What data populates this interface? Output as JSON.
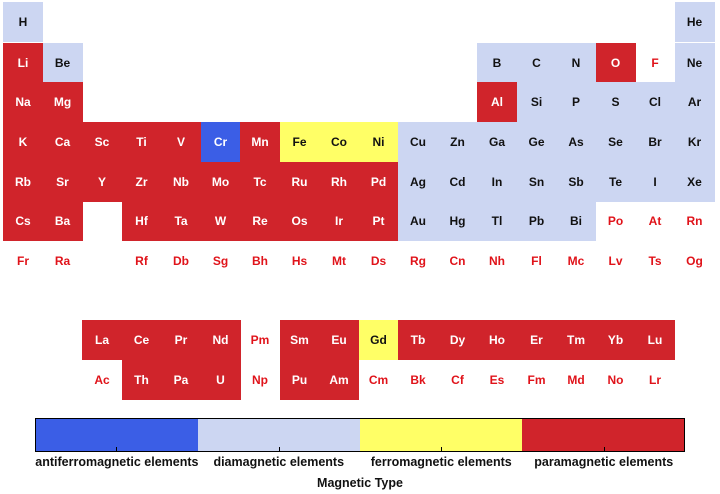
{
  "chart_data": {
    "type": "heatmap",
    "legend": {
      "title": "Magnetic Type",
      "placement": "bottom",
      "categories": [
        {
          "key": "anti",
          "label": "antiferromagnetic elements",
          "color": "#3b5ee6"
        },
        {
          "key": "dia",
          "label": "diamagnetic elements",
          "color": "#ccd6f2"
        },
        {
          "key": "ferro",
          "label": "ferromagnetic elements",
          "color": "#ffff66"
        },
        {
          "key": "para",
          "label": "paramagnetic elements",
          "color": "#d0242b"
        }
      ]
    },
    "unclassified_text_color": "#e0131a",
    "elements": [
      {
        "symbol": "H",
        "period": 1,
        "group": 1,
        "type": "dia"
      },
      {
        "symbol": "He",
        "period": 1,
        "group": 18,
        "type": "dia"
      },
      {
        "symbol": "Li",
        "period": 2,
        "group": 1,
        "type": "para"
      },
      {
        "symbol": "Be",
        "period": 2,
        "group": 2,
        "type": "dia"
      },
      {
        "symbol": "B",
        "period": 2,
        "group": 13,
        "type": "dia"
      },
      {
        "symbol": "C",
        "period": 2,
        "group": 14,
        "type": "dia"
      },
      {
        "symbol": "N",
        "period": 2,
        "group": 15,
        "type": "dia"
      },
      {
        "symbol": "O",
        "period": 2,
        "group": 16,
        "type": "para"
      },
      {
        "symbol": "F",
        "period": 2,
        "group": 17,
        "type": null
      },
      {
        "symbol": "Ne",
        "period": 2,
        "group": 18,
        "type": "dia"
      },
      {
        "symbol": "Na",
        "period": 3,
        "group": 1,
        "type": "para"
      },
      {
        "symbol": "Mg",
        "period": 3,
        "group": 2,
        "type": "para"
      },
      {
        "symbol": "Al",
        "period": 3,
        "group": 13,
        "type": "para"
      },
      {
        "symbol": "Si",
        "period": 3,
        "group": 14,
        "type": "dia"
      },
      {
        "symbol": "P",
        "period": 3,
        "group": 15,
        "type": "dia"
      },
      {
        "symbol": "S",
        "period": 3,
        "group": 16,
        "type": "dia"
      },
      {
        "symbol": "Cl",
        "period": 3,
        "group": 17,
        "type": "dia"
      },
      {
        "symbol": "Ar",
        "period": 3,
        "group": 18,
        "type": "dia"
      },
      {
        "symbol": "K",
        "period": 4,
        "group": 1,
        "type": "para"
      },
      {
        "symbol": "Ca",
        "period": 4,
        "group": 2,
        "type": "para"
      },
      {
        "symbol": "Sc",
        "period": 4,
        "group": 3,
        "type": "para"
      },
      {
        "symbol": "Ti",
        "period": 4,
        "group": 4,
        "type": "para"
      },
      {
        "symbol": "V",
        "period": 4,
        "group": 5,
        "type": "para"
      },
      {
        "symbol": "Cr",
        "period": 4,
        "group": 6,
        "type": "anti"
      },
      {
        "symbol": "Mn",
        "period": 4,
        "group": 7,
        "type": "para"
      },
      {
        "symbol": "Fe",
        "period": 4,
        "group": 8,
        "type": "ferro"
      },
      {
        "symbol": "Co",
        "period": 4,
        "group": 9,
        "type": "ferro"
      },
      {
        "symbol": "Ni",
        "period": 4,
        "group": 10,
        "type": "ferro"
      },
      {
        "symbol": "Cu",
        "period": 4,
        "group": 11,
        "type": "dia"
      },
      {
        "symbol": "Zn",
        "period": 4,
        "group": 12,
        "type": "dia"
      },
      {
        "symbol": "Ga",
        "period": 4,
        "group": 13,
        "type": "dia"
      },
      {
        "symbol": "Ge",
        "period": 4,
        "group": 14,
        "type": "dia"
      },
      {
        "symbol": "As",
        "period": 4,
        "group": 15,
        "type": "dia"
      },
      {
        "symbol": "Se",
        "period": 4,
        "group": 16,
        "type": "dia"
      },
      {
        "symbol": "Br",
        "period": 4,
        "group": 17,
        "type": "dia"
      },
      {
        "symbol": "Kr",
        "period": 4,
        "group": 18,
        "type": "dia"
      },
      {
        "symbol": "Rb",
        "period": 5,
        "group": 1,
        "type": "para"
      },
      {
        "symbol": "Sr",
        "period": 5,
        "group": 2,
        "type": "para"
      },
      {
        "symbol": "Y",
        "period": 5,
        "group": 3,
        "type": "para"
      },
      {
        "symbol": "Zr",
        "period": 5,
        "group": 4,
        "type": "para"
      },
      {
        "symbol": "Nb",
        "period": 5,
        "group": 5,
        "type": "para"
      },
      {
        "symbol": "Mo",
        "period": 5,
        "group": 6,
        "type": "para"
      },
      {
        "symbol": "Tc",
        "period": 5,
        "group": 7,
        "type": "para"
      },
      {
        "symbol": "Ru",
        "period": 5,
        "group": 8,
        "type": "para"
      },
      {
        "symbol": "Rh",
        "period": 5,
        "group": 9,
        "type": "para"
      },
      {
        "symbol": "Pd",
        "period": 5,
        "group": 10,
        "type": "para"
      },
      {
        "symbol": "Ag",
        "period": 5,
        "group": 11,
        "type": "dia"
      },
      {
        "symbol": "Cd",
        "period": 5,
        "group": 12,
        "type": "dia"
      },
      {
        "symbol": "In",
        "period": 5,
        "group": 13,
        "type": "dia"
      },
      {
        "symbol": "Sn",
        "period": 5,
        "group": 14,
        "type": "dia"
      },
      {
        "symbol": "Sb",
        "period": 5,
        "group": 15,
        "type": "dia"
      },
      {
        "symbol": "Te",
        "period": 5,
        "group": 16,
        "type": "dia"
      },
      {
        "symbol": "I",
        "period": 5,
        "group": 17,
        "type": "dia"
      },
      {
        "symbol": "Xe",
        "period": 5,
        "group": 18,
        "type": "dia"
      },
      {
        "symbol": "Cs",
        "period": 6,
        "group": 1,
        "type": "para"
      },
      {
        "symbol": "Ba",
        "period": 6,
        "group": 2,
        "type": "para"
      },
      {
        "symbol": "Hf",
        "period": 6,
        "group": 4,
        "type": "para"
      },
      {
        "symbol": "Ta",
        "period": 6,
        "group": 5,
        "type": "para"
      },
      {
        "symbol": "W",
        "period": 6,
        "group": 6,
        "type": "para"
      },
      {
        "symbol": "Re",
        "period": 6,
        "group": 7,
        "type": "para"
      },
      {
        "symbol": "Os",
        "period": 6,
        "group": 8,
        "type": "para"
      },
      {
        "symbol": "Ir",
        "period": 6,
        "group": 9,
        "type": "para"
      },
      {
        "symbol": "Pt",
        "period": 6,
        "group": 10,
        "type": "para"
      },
      {
        "symbol": "Au",
        "period": 6,
        "group": 11,
        "type": "dia"
      },
      {
        "symbol": "Hg",
        "period": 6,
        "group": 12,
        "type": "dia"
      },
      {
        "symbol": "Tl",
        "period": 6,
        "group": 13,
        "type": "dia"
      },
      {
        "symbol": "Pb",
        "period": 6,
        "group": 14,
        "type": "dia"
      },
      {
        "symbol": "Bi",
        "period": 6,
        "group": 15,
        "type": "dia"
      },
      {
        "symbol": "Po",
        "period": 6,
        "group": 16,
        "type": null
      },
      {
        "symbol": "At",
        "period": 6,
        "group": 17,
        "type": null
      },
      {
        "symbol": "Rn",
        "period": 6,
        "group": 18,
        "type": null
      },
      {
        "symbol": "Fr",
        "period": 7,
        "group": 1,
        "type": null
      },
      {
        "symbol": "Ra",
        "period": 7,
        "group": 2,
        "type": null
      },
      {
        "symbol": "Rf",
        "period": 7,
        "group": 4,
        "type": null
      },
      {
        "symbol": "Db",
        "period": 7,
        "group": 5,
        "type": null
      },
      {
        "symbol": "Sg",
        "period": 7,
        "group": 6,
        "type": null
      },
      {
        "symbol": "Bh",
        "period": 7,
        "group": 7,
        "type": null
      },
      {
        "symbol": "Hs",
        "period": 7,
        "group": 8,
        "type": null
      },
      {
        "symbol": "Mt",
        "period": 7,
        "group": 9,
        "type": null
      },
      {
        "symbol": "Ds",
        "period": 7,
        "group": 10,
        "type": null
      },
      {
        "symbol": "Rg",
        "period": 7,
        "group": 11,
        "type": null
      },
      {
        "symbol": "Cn",
        "period": 7,
        "group": 12,
        "type": null
      },
      {
        "symbol": "Nh",
        "period": 7,
        "group": 13,
        "type": null
      },
      {
        "symbol": "Fl",
        "period": 7,
        "group": 14,
        "type": null
      },
      {
        "symbol": "Mc",
        "period": 7,
        "group": 15,
        "type": null
      },
      {
        "symbol": "Lv",
        "period": 7,
        "group": 16,
        "type": null
      },
      {
        "symbol": "Ts",
        "period": 7,
        "group": 17,
        "type": null
      },
      {
        "symbol": "Og",
        "period": 7,
        "group": 18,
        "type": null
      },
      {
        "symbol": "La",
        "period": "lanthanide",
        "group": 3,
        "type": "para"
      },
      {
        "symbol": "Ce",
        "period": "lanthanide",
        "group": 4,
        "type": "para"
      },
      {
        "symbol": "Pr",
        "period": "lanthanide",
        "group": 5,
        "type": "para"
      },
      {
        "symbol": "Nd",
        "period": "lanthanide",
        "group": 6,
        "type": "para"
      },
      {
        "symbol": "Pm",
        "period": "lanthanide",
        "group": 7,
        "type": null
      },
      {
        "symbol": "Sm",
        "period": "lanthanide",
        "group": 8,
        "type": "para"
      },
      {
        "symbol": "Eu",
        "period": "lanthanide",
        "group": 9,
        "type": "para"
      },
      {
        "symbol": "Gd",
        "period": "lanthanide",
        "group": 10,
        "type": "ferro"
      },
      {
        "symbol": "Tb",
        "period": "lanthanide",
        "group": 11,
        "type": "para"
      },
      {
        "symbol": "Dy",
        "period": "lanthanide",
        "group": 12,
        "type": "para"
      },
      {
        "symbol": "Ho",
        "period": "lanthanide",
        "group": 13,
        "type": "para"
      },
      {
        "symbol": "Er",
        "period": "lanthanide",
        "group": 14,
        "type": "para"
      },
      {
        "symbol": "Tm",
        "period": "lanthanide",
        "group": 15,
        "type": "para"
      },
      {
        "symbol": "Yb",
        "period": "lanthanide",
        "group": 16,
        "type": "para"
      },
      {
        "symbol": "Lu",
        "period": "lanthanide",
        "group": 17,
        "type": "para"
      },
      {
        "symbol": "Ac",
        "period": "actinide",
        "group": 3,
        "type": null
      },
      {
        "symbol": "Th",
        "period": "actinide",
        "group": 4,
        "type": "para"
      },
      {
        "symbol": "Pa",
        "period": "actinide",
        "group": 5,
        "type": "para"
      },
      {
        "symbol": "U",
        "period": "actinide",
        "group": 6,
        "type": "para"
      },
      {
        "symbol": "Np",
        "period": "actinide",
        "group": 7,
        "type": null
      },
      {
        "symbol": "Pu",
        "period": "actinide",
        "group": 8,
        "type": "para"
      },
      {
        "symbol": "Am",
        "period": "actinide",
        "group": 9,
        "type": "para"
      },
      {
        "symbol": "Cm",
        "period": "actinide",
        "group": 10,
        "type": null
      },
      {
        "symbol": "Bk",
        "period": "actinide",
        "group": 11,
        "type": null
      },
      {
        "symbol": "Cf",
        "period": "actinide",
        "group": 12,
        "type": null
      },
      {
        "symbol": "Es",
        "period": "actinide",
        "group": 13,
        "type": null
      },
      {
        "symbol": "Fm",
        "period": "actinide",
        "group": 14,
        "type": null
      },
      {
        "symbol": "Md",
        "period": "actinide",
        "group": 15,
        "type": null
      },
      {
        "symbol": "No",
        "period": "actinide",
        "group": 16,
        "type": null
      },
      {
        "symbol": "Lr",
        "period": "actinide",
        "group": 17,
        "type": null
      }
    ]
  }
}
